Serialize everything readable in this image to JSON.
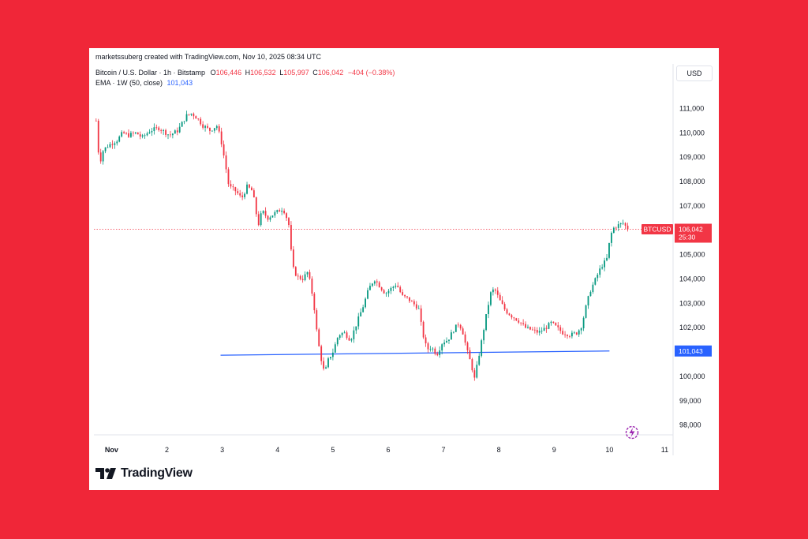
{
  "header": {
    "created_by": "marketssuberg created with TradingView.com, Nov 10, 2025 08:34 UTC",
    "symbol": "Bitcoin / U.S. Dollar · 1h · Bitstamp",
    "ohlc": {
      "o_label": "O",
      "o": "106,446",
      "h_label": "H",
      "h": "106,532",
      "l_label": "L",
      "l": "105,997",
      "c_label": "C",
      "c": "106,042",
      "change": "−404 (−0.38%)"
    },
    "ema_label": "EMA · 1W (50, close)",
    "ema_value": "101,043",
    "currency": "USD"
  },
  "footer": {
    "logo_text": "TradingView"
  },
  "chart_data": {
    "type": "candlestick",
    "symbol_tag": "BTCUSD",
    "last_price_label": "106,042",
    "countdown": "25:30",
    "ema_label": "101,043",
    "ylim": [
      97600,
      111600
    ],
    "y_ticks": [
      111000,
      110000,
      109000,
      108000,
      107000,
      106000,
      105000,
      104000,
      103000,
      102000,
      101000,
      100000,
      99000,
      98000
    ],
    "y_tick_labels": [
      "111,000",
      "110,000",
      "109,000",
      "108,000",
      "107,000",
      "",
      "105,000",
      "104,000",
      "103,000",
      "102,000",
      "",
      "100,000",
      "99,000",
      "98,000"
    ],
    "x_ticks": [
      {
        "day": 1,
        "label": "Nov"
      },
      {
        "day": 2,
        "label": "2"
      },
      {
        "day": 3,
        "label": "3"
      },
      {
        "day": 4,
        "label": "4"
      },
      {
        "day": 5,
        "label": "5"
      },
      {
        "day": 6,
        "label": "6"
      },
      {
        "day": 7,
        "label": "7"
      },
      {
        "day": 8,
        "label": "8"
      },
      {
        "day": 9,
        "label": "9"
      },
      {
        "day": 10,
        "label": "10"
      },
      {
        "day": 11,
        "label": "11"
      }
    ],
    "x_range_days": [
      0.68,
      11.15
    ],
    "ema_line": {
      "start": {
        "day": 2.97,
        "value": 100870
      },
      "end": {
        "day": 10.0,
        "value": 101043
      }
    },
    "last_price": 106042,
    "price_path": [
      {
        "day": 0.72,
        "price": 110500
      },
      {
        "day": 0.78,
        "price": 108700
      },
      {
        "day": 0.85,
        "price": 109300
      },
      {
        "day": 0.95,
        "price": 109500
      },
      {
        "day": 1.1,
        "price": 109700
      },
      {
        "day": 1.2,
        "price": 110000
      },
      {
        "day": 1.3,
        "price": 109900
      },
      {
        "day": 1.45,
        "price": 110000
      },
      {
        "day": 1.55,
        "price": 109800
      },
      {
        "day": 1.7,
        "price": 110100
      },
      {
        "day": 1.85,
        "price": 110200
      },
      {
        "day": 2.05,
        "price": 109900
      },
      {
        "day": 2.2,
        "price": 110100
      },
      {
        "day": 2.35,
        "price": 110700
      },
      {
        "day": 2.45,
        "price": 110800
      },
      {
        "day": 2.55,
        "price": 110600
      },
      {
        "day": 2.65,
        "price": 110300
      },
      {
        "day": 2.78,
        "price": 110100
      },
      {
        "day": 2.9,
        "price": 110300
      },
      {
        "day": 2.97,
        "price": 109800
      },
      {
        "day": 3.05,
        "price": 108800
      },
      {
        "day": 3.12,
        "price": 107800
      },
      {
        "day": 3.25,
        "price": 107600
      },
      {
        "day": 3.35,
        "price": 107300
      },
      {
        "day": 3.45,
        "price": 107800
      },
      {
        "day": 3.55,
        "price": 107600
      },
      {
        "day": 3.65,
        "price": 106200
      },
      {
        "day": 3.72,
        "price": 106800
      },
      {
        "day": 3.82,
        "price": 106500
      },
      {
        "day": 3.95,
        "price": 106700
      },
      {
        "day": 4.1,
        "price": 106900
      },
      {
        "day": 4.2,
        "price": 106300
      },
      {
        "day": 4.27,
        "price": 104500
      },
      {
        "day": 4.35,
        "price": 104100
      },
      {
        "day": 4.45,
        "price": 104000
      },
      {
        "day": 4.55,
        "price": 104300
      },
      {
        "day": 4.65,
        "price": 103100
      },
      {
        "day": 4.72,
        "price": 101600
      },
      {
        "day": 4.78,
        "price": 100800
      },
      {
        "day": 4.85,
        "price": 100100
      },
      {
        "day": 4.92,
        "price": 100700
      },
      {
        "day": 5.0,
        "price": 101000
      },
      {
        "day": 5.1,
        "price": 101700
      },
      {
        "day": 5.2,
        "price": 101800
      },
      {
        "day": 5.32,
        "price": 101500
      },
      {
        "day": 5.45,
        "price": 102300
      },
      {
        "day": 5.55,
        "price": 102900
      },
      {
        "day": 5.65,
        "price": 103600
      },
      {
        "day": 5.75,
        "price": 104000
      },
      {
        "day": 5.85,
        "price": 103700
      },
      {
        "day": 5.95,
        "price": 103400
      },
      {
        "day": 6.05,
        "price": 103600
      },
      {
        "day": 6.15,
        "price": 103800
      },
      {
        "day": 6.25,
        "price": 103300
      },
      {
        "day": 6.35,
        "price": 103200
      },
      {
        "day": 6.45,
        "price": 103000
      },
      {
        "day": 6.55,
        "price": 102800
      },
      {
        "day": 6.62,
        "price": 101800
      },
      {
        "day": 6.7,
        "price": 101100
      },
      {
        "day": 6.78,
        "price": 101200
      },
      {
        "day": 6.88,
        "price": 100900
      },
      {
        "day": 6.98,
        "price": 101400
      },
      {
        "day": 7.08,
        "price": 101500
      },
      {
        "day": 7.18,
        "price": 101900
      },
      {
        "day": 7.28,
        "price": 102200
      },
      {
        "day": 7.35,
        "price": 101800
      },
      {
        "day": 7.42,
        "price": 101100
      },
      {
        "day": 7.5,
        "price": 100500
      },
      {
        "day": 7.56,
        "price": 99900
      },
      {
        "day": 7.62,
        "price": 100600
      },
      {
        "day": 7.7,
        "price": 101600
      },
      {
        "day": 7.78,
        "price": 102600
      },
      {
        "day": 7.85,
        "price": 103400
      },
      {
        "day": 7.92,
        "price": 103600
      },
      {
        "day": 8.02,
        "price": 103100
      },
      {
        "day": 8.12,
        "price": 102700
      },
      {
        "day": 8.22,
        "price": 102500
      },
      {
        "day": 8.35,
        "price": 102300
      },
      {
        "day": 8.48,
        "price": 102000
      },
      {
        "day": 8.6,
        "price": 101900
      },
      {
        "day": 8.72,
        "price": 101800
      },
      {
        "day": 8.85,
        "price": 102000
      },
      {
        "day": 8.95,
        "price": 102200
      },
      {
        "day": 9.05,
        "price": 102000
      },
      {
        "day": 9.15,
        "price": 101800
      },
      {
        "day": 9.3,
        "price": 101700
      },
      {
        "day": 9.42,
        "price": 101800
      },
      {
        "day": 9.5,
        "price": 102100
      },
      {
        "day": 9.58,
        "price": 102900
      },
      {
        "day": 9.65,
        "price": 103500
      },
      {
        "day": 9.75,
        "price": 104000
      },
      {
        "day": 9.85,
        "price": 104500
      },
      {
        "day": 9.95,
        "price": 104800
      },
      {
        "day": 10.02,
        "price": 105800
      },
      {
        "day": 10.08,
        "price": 106100
      },
      {
        "day": 10.15,
        "price": 106200
      },
      {
        "day": 10.25,
        "price": 106300
      },
      {
        "day": 10.33,
        "price": 106042
      }
    ],
    "colors": {
      "up": "#089981",
      "down": "#f23645",
      "ema": "#2962ff",
      "background": "#ffffff",
      "frame": "#f02638"
    }
  }
}
